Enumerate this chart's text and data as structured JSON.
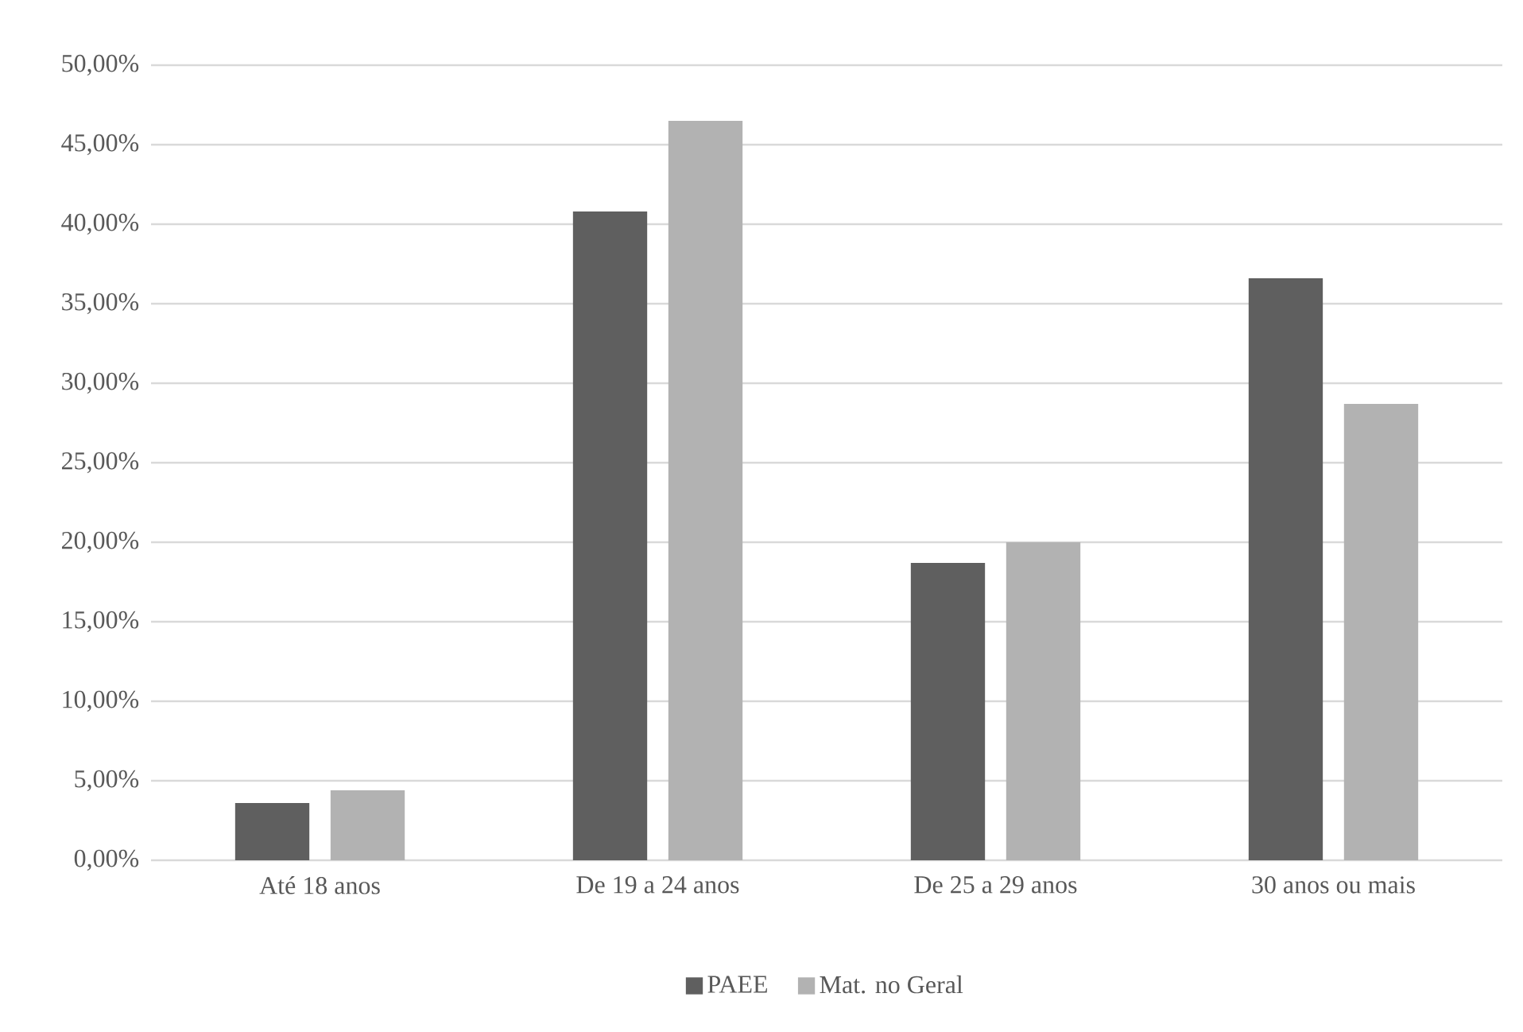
{
  "chart_data": {
    "type": "bar",
    "categories": [
      "Até 18 anos",
      "De 19 a 24 anos",
      "De 25 a 29 anos",
      "30 anos ou mais"
    ],
    "series": [
      {
        "name": "PAEE",
        "color": "#5f5f5f",
        "values": [
          3.6,
          40.8,
          18.7,
          36.6
        ]
      },
      {
        "name": "Mat. no Geral",
        "color": "#b2b2b2",
        "values": [
          4.4,
          46.5,
          20.0,
          28.7
        ]
      }
    ],
    "ylim": [
      0,
      50
    ],
    "yticks": [
      {
        "value": 0,
        "label": "0,00%"
      },
      {
        "value": 5,
        "label": "5,00%"
      },
      {
        "value": 10,
        "label": "10,00%"
      },
      {
        "value": 15,
        "label": "15,00%"
      },
      {
        "value": 20,
        "label": "20,00%"
      },
      {
        "value": 25,
        "label": "25,00%"
      },
      {
        "value": 30,
        "label": "30,00%"
      },
      {
        "value": 35,
        "label": "35,00%"
      },
      {
        "value": 40,
        "label": "40,00%"
      },
      {
        "value": 45,
        "label": "45,00%"
      },
      {
        "value": 50,
        "label": "50,00%"
      }
    ],
    "grid": "y",
    "legend": "bottom"
  }
}
